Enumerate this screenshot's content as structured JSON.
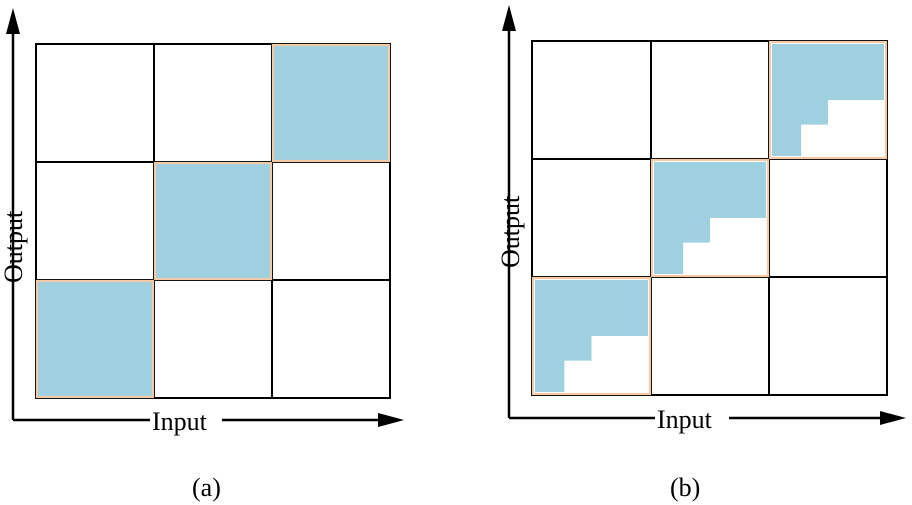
{
  "panels": [
    {
      "caption": "(a)",
      "x_axis_label": "Input",
      "y_axis_label": "Output",
      "grid": {
        "rows": 3,
        "cols": 3
      },
      "diagonal_blocks": [
        {
          "row": 0,
          "col": 2,
          "fill": "full"
        },
        {
          "row": 1,
          "col": 1,
          "fill": "full"
        },
        {
          "row": 2,
          "col": 0,
          "fill": "full"
        }
      ]
    },
    {
      "caption": "(b)",
      "x_axis_label": "Input",
      "y_axis_label": "Output",
      "grid": {
        "rows": 3,
        "cols": 3
      },
      "diagonal_blocks": [
        {
          "row": 0,
          "col": 2,
          "fill": "staircase-lower-triangular"
        },
        {
          "row": 1,
          "col": 1,
          "fill": "staircase-lower-triangular"
        },
        {
          "row": 2,
          "col": 0,
          "fill": "staircase-lower-triangular"
        }
      ]
    }
  ],
  "colors": {
    "block_fill": "#9fd0df",
    "block_border": "#f3c9a8",
    "grid_line": "#000000",
    "axis": "#000000"
  }
}
